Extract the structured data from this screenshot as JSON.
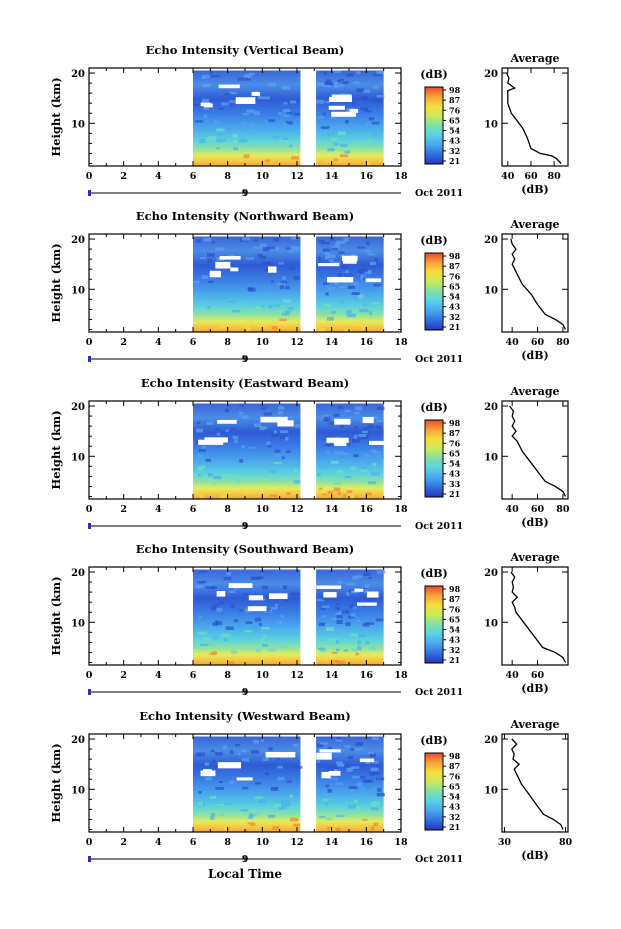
{
  "figure": {
    "xlabel": "Local Time",
    "date_label": "Oct 2011"
  },
  "chart_data": [
    {
      "type": "heatmap",
      "title": "Echo Intensity (Vertical Beam)",
      "ylabel": "Height (km)",
      "x_ticks": [
        0,
        2,
        4,
        6,
        8,
        10,
        12,
        14,
        16,
        18
      ],
      "x_range": [
        0,
        18
      ],
      "y_ticks": [
        10,
        20
      ],
      "y_range": [
        1.5,
        21
      ],
      "date_day": "9",
      "colorbar": {
        "unit": "(dB)",
        "ticks": [
          21,
          32,
          43,
          54,
          65,
          76,
          87,
          98
        ]
      },
      "data_segments": [
        [
          6,
          12.2
        ],
        [
          13.1,
          17
        ]
      ],
      "avg_profile": {
        "title": "Average",
        "xlabel": "(dB)",
        "x_ticks": [
          40,
          60,
          80
        ],
        "x_range": [
          35,
          92
        ],
        "y_ticks": [
          10,
          20
        ],
        "points": [
          [
            86,
            2
          ],
          [
            82,
            3
          ],
          [
            78,
            3.5
          ],
          [
            68,
            4
          ],
          [
            60,
            5
          ],
          [
            57,
            7
          ],
          [
            53,
            9
          ],
          [
            48,
            10.5
          ],
          [
            43,
            12
          ],
          [
            40,
            14
          ],
          [
            40,
            16.5
          ],
          [
            46,
            17
          ],
          [
            40,
            18
          ],
          [
            41,
            19
          ],
          [
            39,
            20
          ]
        ]
      }
    },
    {
      "type": "heatmap",
      "title": "Echo Intensity (Northward Beam)",
      "ylabel": "Height (km)",
      "x_ticks": [
        0,
        2,
        4,
        6,
        8,
        10,
        12,
        14,
        16,
        18
      ],
      "x_range": [
        0,
        18
      ],
      "y_ticks": [
        10,
        20
      ],
      "y_range": [
        1.5,
        21
      ],
      "date_day": "9",
      "colorbar": {
        "unit": "(dB)",
        "ticks": [
          21,
          32,
          43,
          54,
          65,
          76,
          87,
          98
        ]
      },
      "data_segments": [
        [
          6,
          12.2
        ],
        [
          13.1,
          17
        ]
      ],
      "avg_profile": {
        "title": "Average",
        "xlabel": "(dB)",
        "x_ticks": [
          40,
          60,
          80
        ],
        "x_range": [
          32,
          84
        ],
        "y_ticks": [
          10,
          20
        ],
        "points": [
          [
            82,
            2
          ],
          [
            80,
            3
          ],
          [
            74,
            4
          ],
          [
            66,
            5
          ],
          [
            60,
            7
          ],
          [
            55,
            9
          ],
          [
            48,
            11
          ],
          [
            44,
            13
          ],
          [
            40,
            15
          ],
          [
            42,
            16
          ],
          [
            40,
            17
          ],
          [
            43,
            18
          ],
          [
            40,
            19
          ],
          [
            39,
            20
          ]
        ]
      }
    },
    {
      "type": "heatmap",
      "title": "Echo Intensity (Eastward Beam)",
      "ylabel": "Height (km)",
      "x_ticks": [
        0,
        2,
        4,
        6,
        8,
        10,
        12,
        14,
        16,
        18
      ],
      "x_range": [
        0,
        18
      ],
      "y_ticks": [
        10,
        20
      ],
      "y_range": [
        1.5,
        21
      ],
      "date_day": "9",
      "colorbar": {
        "unit": "(dB)",
        "ticks": [
          21,
          33,
          43,
          54,
          65,
          76,
          87,
          98
        ]
      },
      "data_segments": [
        [
          6,
          12.2
        ],
        [
          13.1,
          17
        ]
      ],
      "avg_profile": {
        "title": "Average",
        "xlabel": "(dB)",
        "x_ticks": [
          40,
          60,
          80
        ],
        "x_range": [
          32,
          84
        ],
        "y_ticks": [
          10,
          20
        ],
        "points": [
          [
            82,
            2
          ],
          [
            80,
            3
          ],
          [
            74,
            4
          ],
          [
            66,
            5
          ],
          [
            60,
            7
          ],
          [
            54,
            9
          ],
          [
            48,
            11
          ],
          [
            44,
            13
          ],
          [
            40,
            14
          ],
          [
            43,
            15
          ],
          [
            40,
            16
          ],
          [
            42,
            17
          ],
          [
            40,
            18
          ],
          [
            41,
            19
          ],
          [
            38,
            20
          ]
        ]
      }
    },
    {
      "type": "heatmap",
      "title": "Echo Intensity (Southward Beam)",
      "ylabel": "Height (km)",
      "x_ticks": [
        0,
        2,
        4,
        6,
        8,
        10,
        12,
        14,
        16,
        18
      ],
      "x_range": [
        0,
        18
      ],
      "y_ticks": [
        10,
        20
      ],
      "y_range": [
        1.5,
        21
      ],
      "date_day": "9",
      "colorbar": {
        "unit": "(dB)",
        "ticks": [
          21,
          32,
          43,
          54,
          65,
          76,
          87,
          98
        ]
      },
      "data_segments": [
        [
          6,
          12.2
        ],
        [
          13.1,
          17
        ]
      ],
      "avg_profile": {
        "title": "Average",
        "xlabel": "(dB)",
        "x_ticks": [
          40,
          60
        ],
        "x_range": [
          32,
          84
        ],
        "y_ticks": [
          10,
          20
        ],
        "points": [
          [
            82,
            2
          ],
          [
            80,
            3
          ],
          [
            74,
            4
          ],
          [
            64,
            5
          ],
          [
            58,
            7
          ],
          [
            52,
            9
          ],
          [
            46,
            11
          ],
          [
            43,
            12
          ],
          [
            42,
            13
          ],
          [
            40,
            14
          ],
          [
            44,
            15
          ],
          [
            40,
            16
          ],
          [
            41,
            17
          ],
          [
            40,
            18
          ],
          [
            42,
            19
          ],
          [
            39,
            20
          ]
        ]
      }
    },
    {
      "type": "heatmap",
      "title": "Echo Intensity (Westward Beam)",
      "ylabel": "Height (km)",
      "x_ticks": [
        0,
        2,
        4,
        6,
        8,
        10,
        12,
        14,
        16,
        18
      ],
      "x_range": [
        0,
        18
      ],
      "y_ticks": [
        10,
        20
      ],
      "y_range": [
        1.5,
        21
      ],
      "date_day": "9",
      "colorbar": {
        "unit": "(dB)",
        "ticks": [
          21,
          32,
          43,
          54,
          65,
          76,
          87,
          98
        ]
      },
      "data_segments": [
        [
          6,
          12.2
        ],
        [
          13.1,
          17
        ]
      ],
      "avg_profile": {
        "title": "Average",
        "xlabel": "(dB)",
        "x_ticks": [
          30,
          80
        ],
        "x_range": [
          28,
          82
        ],
        "y_ticks": [
          10,
          20
        ],
        "points": [
          [
            78,
            2
          ],
          [
            76,
            3
          ],
          [
            70,
            4
          ],
          [
            62,
            5
          ],
          [
            56,
            7
          ],
          [
            50,
            9
          ],
          [
            44,
            11
          ],
          [
            40,
            13
          ],
          [
            38,
            14
          ],
          [
            42,
            15
          ],
          [
            37,
            16
          ],
          [
            38,
            17
          ],
          [
            36,
            18
          ],
          [
            40,
            19
          ],
          [
            36,
            20
          ]
        ]
      }
    }
  ]
}
